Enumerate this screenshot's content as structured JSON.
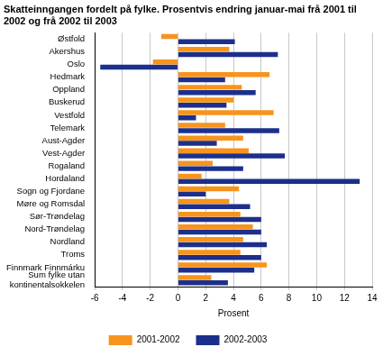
{
  "chart_data": {
    "type": "bar",
    "orientation": "horizontal",
    "title": "Skatteinngangen fordelt på fylke. Prosentvis endring januar-mai frå 2001 til 2002 og frå 2002 til 2003",
    "xlabel": "Prosent",
    "categories": [
      "Østfold",
      "Akershus",
      "Oslo",
      "Hedmark",
      "Oppland",
      "Buskerud",
      "Vestfold",
      "Telemark",
      "Aust-Agder",
      "Vest-Agder",
      "Rogaland",
      "Hordaland",
      "Sogn og Fjordane",
      "Møre og Romsdal",
      "Sør-Trøndelag",
      "Nord-Trøndelag",
      "Nordland",
      "Troms",
      "Finnmark Finnmárku",
      "Sum fylke utan kontinentalsokkelen"
    ],
    "series": [
      {
        "name": "2001-2002",
        "color": "#f7941d",
        "values": [
          -1.2,
          3.7,
          -1.8,
          6.6,
          4.6,
          4.0,
          6.9,
          3.4,
          4.7,
          5.1,
          2.5,
          1.7,
          4.4,
          3.7,
          4.5,
          5.4,
          4.7,
          4.5,
          6.4,
          2.4
        ]
      },
      {
        "name": "2002-2003",
        "color": "#1c2f8c",
        "values": [
          4.1,
          7.2,
          -5.6,
          3.4,
          5.6,
          3.5,
          1.3,
          7.3,
          2.8,
          7.7,
          4.7,
          13.1,
          2.0,
          5.2,
          6.0,
          6.0,
          6.4,
          6.0,
          5.5,
          3.6
        ]
      }
    ],
    "xlim": [
      -6,
      14
    ],
    "xticks": [
      -6,
      -4,
      -2,
      0,
      2,
      4,
      6,
      8,
      10,
      12,
      14
    ],
    "grid": true,
    "legend": "bottom"
  }
}
